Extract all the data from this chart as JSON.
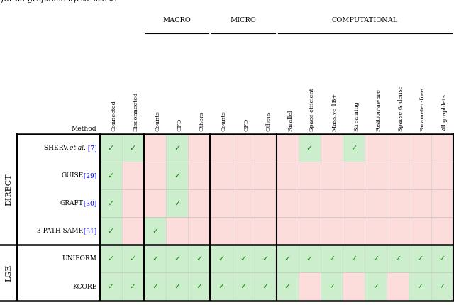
{
  "col_headers": [
    "Connected",
    "Disconnected",
    "Counts",
    "GFD",
    "Others",
    "Counts",
    "GFD",
    "Others",
    "Parallel",
    "Space efficient",
    "Massive 1B+",
    "Streaming",
    "Position-aware",
    "Sparse & dense",
    "Parameter-free",
    "All graphlets"
  ],
  "group_headers": [
    {
      "label": "Macro",
      "start": 2,
      "end": 4
    },
    {
      "label": "Micro",
      "start": 5,
      "end": 7
    },
    {
      "label": "Computational",
      "start": 8,
      "end": 15
    }
  ],
  "strong_col_dividers": [
    0,
    2,
    5,
    8,
    16
  ],
  "sections": [
    {
      "group_label": "Direct",
      "rows": [
        {
          "main": "Sherv. ",
          "italic": "et al.",
          "ref": " [7]",
          "checks": [
            1,
            1,
            0,
            1,
            0,
            0,
            0,
            0,
            0,
            1,
            0,
            1,
            0,
            0,
            0,
            0
          ]
        },
        {
          "main": "Guise",
          "italic": "",
          "ref": " [29]",
          "checks": [
            1,
            0,
            0,
            1,
            0,
            0,
            0,
            0,
            0,
            0,
            0,
            0,
            0,
            0,
            0,
            0
          ]
        },
        {
          "main": "Graft",
          "italic": "",
          "ref": " [30]",
          "checks": [
            1,
            0,
            0,
            1,
            0,
            0,
            0,
            0,
            0,
            0,
            0,
            0,
            0,
            0,
            0,
            0
          ]
        },
        {
          "main": "3-Path Samp.",
          "italic": "",
          "ref": " [31]",
          "checks": [
            1,
            0,
            1,
            0,
            0,
            0,
            0,
            0,
            0,
            0,
            0,
            0,
            0,
            0,
            0,
            0
          ]
        }
      ]
    },
    {
      "group_label": "LGE",
      "rows": [
        {
          "main": "Uniform",
          "italic": "",
          "ref": "",
          "checks": [
            1,
            1,
            1,
            1,
            1,
            1,
            1,
            1,
            1,
            1,
            1,
            1,
            1,
            1,
            1,
            1
          ]
        },
        {
          "main": "KCore",
          "italic": "",
          "ref": "",
          "checks": [
            1,
            1,
            1,
            1,
            1,
            1,
            1,
            1,
            1,
            0,
            1,
            0,
            1,
            0,
            1,
            1
          ]
        }
      ]
    }
  ],
  "green": "#cceecc",
  "pink": "#fddcdc",
  "check_color": "#1a8a1a",
  "ncols": 16,
  "top_label": "for all graphlets up to size $k$."
}
